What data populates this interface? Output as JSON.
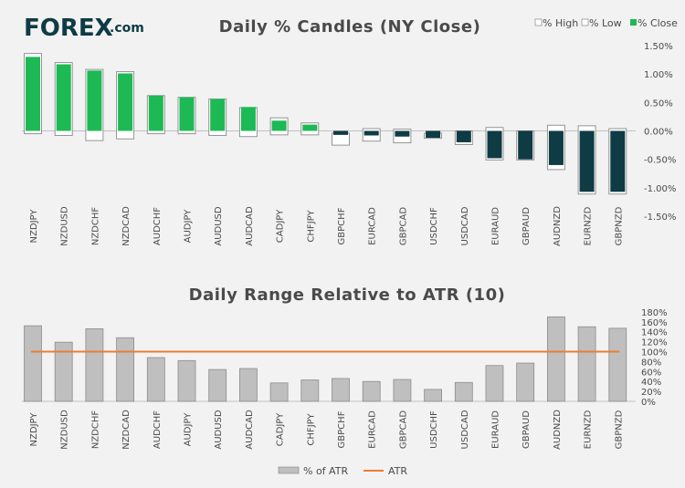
{
  "brand": {
    "logo_text": "FOREX",
    "logo_suffix": ".com"
  },
  "colors": {
    "up": "#1db954",
    "down": "#0e3b44",
    "bar": "#bfbfbf",
    "atr": "#ed7d31"
  },
  "chart_data": [
    {
      "type": "bar",
      "title": "Daily % Candles (NY Close)",
      "legend": {
        "position": "top-right",
        "items": [
          "% High",
          "% Low",
          "% Close"
        ]
      },
      "categories": [
        "NZDJPY",
        "NZDUSD",
        "NZDCHF",
        "NZDCAD",
        "AUDCHF",
        "AUDJPY",
        "AUDUSD",
        "AUDCAD",
        "CADJPY",
        "CHFJPY",
        "GBPCHF",
        "EURCAD",
        "GBPCAD",
        "USDCHF",
        "USDCAD",
        "EURAUD",
        "GBPAUD",
        "AUDNZD",
        "EURNZD",
        "GBPNZD"
      ],
      "series": [
        {
          "name": "% High",
          "values": [
            1.36,
            1.2,
            1.08,
            1.04,
            0.62,
            0.59,
            0.56,
            0.41,
            0.23,
            0.14,
            -0.04,
            0.04,
            0.03,
            -0.04,
            0.0,
            0.06,
            0.0,
            0.1,
            0.09,
            0.04
          ]
        },
        {
          "name": "% Low",
          "values": [
            -0.05,
            -0.08,
            -0.17,
            -0.14,
            -0.05,
            -0.05,
            -0.08,
            -0.1,
            -0.07,
            -0.07,
            -0.25,
            -0.18,
            -0.21,
            -0.13,
            -0.24,
            -0.51,
            -0.51,
            -0.68,
            -1.11,
            -1.11
          ]
        },
        {
          "name": "% Close",
          "values": [
            1.3,
            1.17,
            1.06,
            1.01,
            0.62,
            0.59,
            0.56,
            0.42,
            0.18,
            0.11,
            -0.07,
            -0.08,
            -0.1,
            -0.12,
            -0.2,
            -0.48,
            -0.5,
            -0.6,
            -1.07,
            -1.07
          ]
        }
      ],
      "yticks": [
        "1.50%",
        "1.00%",
        "0.50%",
        "0.00%",
        "-0.50%",
        "-1.00%",
        "-1.50%"
      ],
      "ylim": [
        -1.5,
        1.5
      ],
      "xlabel": "",
      "ylabel": ""
    },
    {
      "type": "bar",
      "title": "Daily Range Relative to ATR (10)",
      "legend": {
        "position": "bottom-center",
        "items": [
          "% of ATR",
          "ATR"
        ]
      },
      "categories": [
        "NZDJPY",
        "NZDUSD",
        "NZDCHF",
        "NZDCAD",
        "AUDCHF",
        "AUDJPY",
        "AUDUSD",
        "AUDCAD",
        "CADJPY",
        "CHFJPY",
        "GBPCHF",
        "EURCAD",
        "GBPCAD",
        "USDCHF",
        "USDCAD",
        "EURAUD",
        "GBPAUD",
        "AUDNZD",
        "EURNZD",
        "GBPNZD"
      ],
      "series": [
        {
          "name": "% of ATR",
          "values": [
            152,
            119,
            146,
            128,
            88,
            82,
            64,
            66,
            37,
            43,
            46,
            40,
            44,
            24,
            38,
            72,
            77,
            170,
            150,
            147
          ]
        },
        {
          "name": "ATR",
          "values": [
            100,
            100,
            100,
            100,
            100,
            100,
            100,
            100,
            100,
            100,
            100,
            100,
            100,
            100,
            100,
            100,
            100,
            100,
            100,
            100
          ]
        }
      ],
      "yticks": [
        "180%",
        "160%",
        "140%",
        "120%",
        "100%",
        "80%",
        "60%",
        "40%",
        "20%",
        "0%"
      ],
      "ylim": [
        0,
        180
      ],
      "xlabel": "",
      "ylabel": ""
    }
  ]
}
